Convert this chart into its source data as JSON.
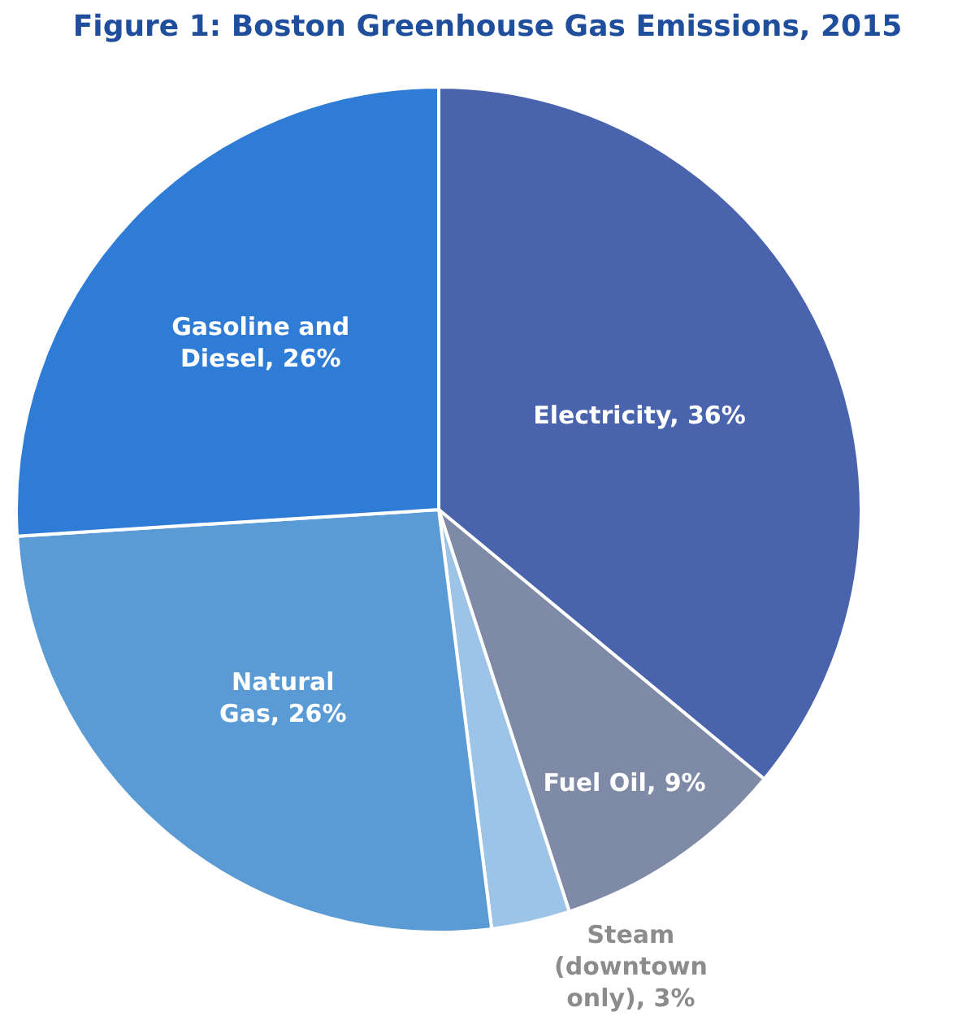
{
  "chart_data": {
    "type": "pie",
    "title": "Figure 1: Boston Greenhouse Gas Emissions, 2015",
    "categories": [
      "Electricity",
      "Fuel Oil",
      "Steam (downtown only)",
      "Natural Gas",
      "Gasoline and Diesel"
    ],
    "values": [
      36,
      9,
      3,
      26,
      26
    ],
    "value_labels": [
      "36%",
      "9%",
      "3%",
      "26%",
      "26%"
    ],
    "colors": [
      "#4a63ad",
      "#7f8ba6",
      "#9dc3e6",
      "#5b9bd5",
      "#2e7cd6"
    ]
  }
}
